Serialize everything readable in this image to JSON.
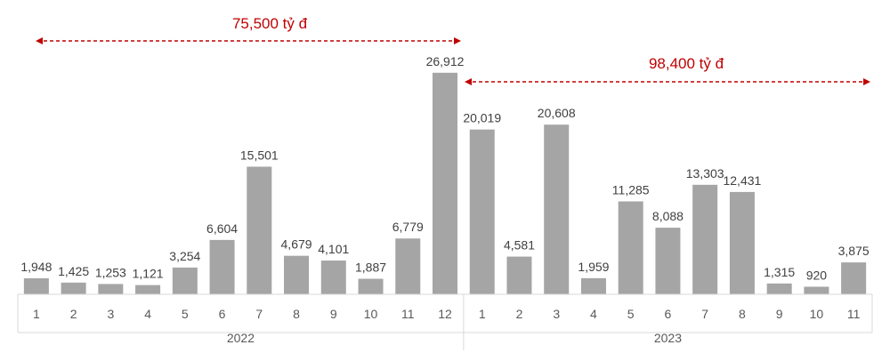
{
  "chart_data": {
    "type": "bar",
    "categories": [
      "1",
      "2",
      "3",
      "4",
      "5",
      "6",
      "7",
      "8",
      "9",
      "10",
      "11",
      "12",
      "1",
      "2",
      "3",
      "4",
      "5",
      "6",
      "7",
      "8",
      "9",
      "10",
      "11"
    ],
    "groups": [
      {
        "label": "2022",
        "count": 12
      },
      {
        "label": "2023",
        "count": 11
      }
    ],
    "values": [
      1948,
      1425,
      1253,
      1121,
      3254,
      6604,
      15501,
      4679,
      4101,
      1887,
      6779,
      26912,
      20019,
      4581,
      20608,
      1959,
      11285,
      8088,
      13303,
      12431,
      1315,
      920,
      3875
    ],
    "value_labels": [
      "1,948",
      "1,425",
      "1,253",
      "1,121",
      "3,254",
      "6,604",
      "15,501",
      "4,679",
      "4,101",
      "1,887",
      "6,779",
      "26,912",
      "20,019",
      "4,581",
      "20,608",
      "1,959",
      "11,285",
      "8,088",
      "13,303",
      "12,431",
      "1,315",
      "920",
      "3,875"
    ],
    "ylim": [
      0,
      27000
    ],
    "grid": false,
    "legend": "none",
    "annotations": [
      {
        "text": "75,500 tỷ đ",
        "from_index": 0,
        "to_index": 11
      },
      {
        "text": "98,400 tỷ đ",
        "from_index": 12,
        "to_index": 22
      }
    ],
    "bar_color": "#a5a5a5",
    "axis_color": "#d9d9d9",
    "annotation_color": "#c00000"
  }
}
